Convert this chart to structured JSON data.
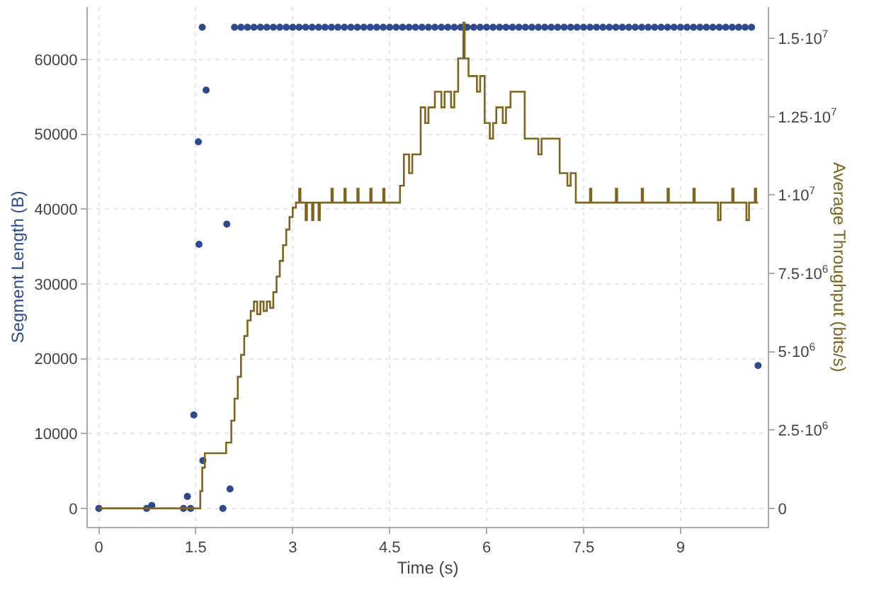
{
  "chart_data": {
    "type": "scatter",
    "xlabel": "Time (s)",
    "ylabel": "Segment Length (B)",
    "y2label": "Average Throughput (bits/s)",
    "xlim": [
      -0.17,
      10.35
    ],
    "xticks": [
      0,
      1.5,
      3,
      4.5,
      6,
      7.5,
      9
    ],
    "ylim": [
      -2460,
      67000
    ],
    "yticks": [
      0,
      10000,
      20000,
      30000,
      40000,
      50000,
      60000
    ],
    "y2lim": [
      -590000,
      16000000
    ],
    "y2ticks": [
      0,
      {
        "value": 2500000,
        "label": "2.5·10$^{6}$"
      },
      {
        "value": 5000000,
        "label": "5·10$^{6}$"
      },
      {
        "value": 7500000,
        "label": "7.5·10$^{6}$"
      },
      {
        "value": 10000000,
        "label": "1·10$^{7}$"
      },
      {
        "value": 12500000,
        "label": "1.25·10$^{7}$"
      },
      {
        "value": 15000000,
        "label": "1.5·10$^{7}$"
      }
    ],
    "grid": true,
    "marker": "circle",
    "series": [
      {
        "color": "#2e4a8c",
        "x": [
          0,
          0.74,
          0.82,
          1.31,
          1.37,
          1.42,
          1.47,
          1.54,
          1.55,
          1.6,
          1.61,
          1.66,
          1.92,
          1.98,
          2.03,
          10.2,
          2.1,
          2.2,
          2.3,
          2.4,
          2.5,
          2.6,
          2.7,
          2.8,
          2.9,
          3.0,
          3.1,
          3.2,
          3.3,
          3.4,
          3.5,
          3.6,
          3.7,
          3.8,
          3.9,
          4.0,
          4.1,
          4.2,
          4.3,
          4.4,
          4.5,
          4.6,
          4.7,
          4.8,
          4.9,
          5.0,
          5.1,
          5.2,
          5.3,
          5.4,
          5.5,
          5.6,
          5.7,
          5.8,
          5.9,
          6.0,
          6.1,
          6.2,
          6.3,
          6.4,
          6.5,
          6.6,
          6.7,
          6.8,
          6.9,
          7.0,
          7.1,
          7.2,
          7.3,
          7.4,
          7.5,
          7.6,
          7.7,
          7.8,
          7.9,
          8.0,
          8.1,
          8.2,
          8.3,
          8.4,
          8.5,
          8.6,
          8.7,
          8.8,
          8.9,
          9.0,
          9.1,
          9.2,
          9.3,
          9.4,
          9.5,
          9.6,
          9.7,
          9.8,
          9.9,
          10.0,
          10.1
        ],
        "values": [
          0,
          0,
          400,
          0,
          1600,
          0,
          12500,
          49000,
          35300,
          64300,
          6400,
          55900,
          0,
          38000,
          2600,
          19100,
          64300,
          64300,
          64300,
          64300,
          64300,
          64300,
          64300,
          64300,
          64300,
          64300,
          64300,
          64300,
          64300,
          64300,
          64300,
          64300,
          64300,
          64300,
          64300,
          64300,
          64300,
          64300,
          64300,
          64300,
          64300,
          64300,
          64300,
          64300,
          64300,
          64300,
          64300,
          64300,
          64300,
          64300,
          64300,
          64300,
          64300,
          64300,
          64300,
          64300,
          64300,
          64300,
          64300,
          64300,
          64300,
          64300,
          64300,
          64300,
          64300,
          64300,
          64300,
          64300,
          64300,
          64300,
          64300,
          64300,
          64300,
          64300,
          64300,
          64300,
          64300,
          64300,
          64300,
          64300,
          64300,
          64300,
          64300,
          64300,
          64300,
          64300,
          64300,
          64300,
          64300,
          64300,
          64300,
          64300,
          64300,
          64300,
          64300,
          64300,
          64300
        ]
      },
      {
        "type": "step",
        "axis": "y2",
        "color": "#7d6420",
        "marker": "none",
        "line_style": "solid",
        "x": [
          0,
          1.55,
          1.57,
          1.6,
          1.64,
          1.97,
          2.05,
          2.1,
          2.15,
          2.2,
          2.25,
          2.3,
          2.35,
          2.4,
          2.45,
          2.5,
          2.55,
          2.6,
          2.65,
          2.7,
          2.75,
          2.8,
          2.85,
          2.9,
          2.95,
          3.0,
          3.05,
          3.1,
          3.12,
          3.2,
          3.22,
          3.3,
          3.32,
          3.4,
          3.42,
          3.6,
          3.62,
          3.8,
          3.82,
          4.0,
          4.02,
          4.2,
          4.22,
          4.4,
          4.42,
          4.66,
          4.72,
          4.8,
          4.85,
          4.98,
          5.05,
          5.1,
          5.2,
          5.3,
          5.35,
          5.45,
          5.5,
          5.56,
          5.64,
          5.66,
          5.72,
          5.85,
          5.9,
          5.97,
          6.05,
          6.1,
          6.15,
          6.25,
          6.3,
          6.37,
          6.59,
          6.8,
          6.85,
          7.13,
          7.25,
          7.3,
          7.38,
          7.6,
          7.62,
          8.0,
          8.02,
          8.4,
          8.42,
          8.8,
          8.82,
          9.2,
          9.22,
          9.58,
          9.62,
          9.8,
          9.82,
          10.02,
          10.06,
          10.15,
          10.17,
          10.2
        ],
        "values": [
          0,
          0,
          550000,
          1300000,
          1760000,
          2100000,
          2800000,
          3500000,
          4200000,
          4900000,
          5500000,
          6000000,
          6300000,
          6600000,
          6200000,
          6600000,
          6300000,
          6600000,
          6400000,
          6900000,
          7400000,
          7900000,
          8400000,
          8900000,
          9300000,
          9600000,
          9760000,
          10200000,
          9760000,
          9200000,
          9760000,
          9200000,
          9760000,
          9200000,
          9760000,
          10200000,
          9760000,
          10200000,
          9760000,
          10200000,
          9760000,
          10200000,
          9760000,
          10200000,
          9760000,
          10300000,
          11300000,
          10700000,
          11300000,
          12800000,
          12300000,
          12800000,
          13300000,
          12800000,
          13300000,
          12800000,
          13300000,
          14360000,
          15500000,
          14360000,
          13800000,
          13300000,
          13800000,
          12300000,
          11800000,
          12300000,
          12800000,
          12300000,
          12800000,
          13300000,
          11800000,
          11300000,
          11800000,
          10700000,
          10300000,
          10700000,
          9760000,
          10200000,
          9760000,
          10200000,
          9760000,
          10200000,
          9760000,
          10200000,
          9760000,
          10200000,
          9760000,
          9200000,
          9760000,
          10200000,
          9760000,
          9200000,
          9760000,
          10200000,
          9760000,
          9760000
        ]
      }
    ]
  }
}
